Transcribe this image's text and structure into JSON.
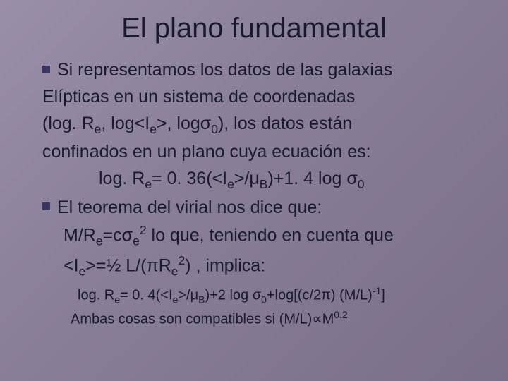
{
  "title": "El plano fundamental",
  "para1_line1_pre": "Si representamos los datos de las galaxias",
  "para1_line2": "Elípticas en un sistema de coordenadas",
  "para1_line3_a": "(log. R",
  "para1_line3_b": ", log<I",
  "para1_line3_c": ">, logσ",
  "para1_line3_d": "), los datos están",
  "para1_line4": "confinados en un plano cuya ecuación es:",
  "eq1_a": "log. R",
  "eq1_b": "= 0. 36(<I",
  "eq1_c": ">/μ",
  "eq1_d": ")+1. 4 log σ",
  "sub_e": "e",
  "sub_B": "B",
  "sub_0": "0",
  "para2_line1": "El teorema del virial nos dice que:",
  "para2_line2_a": "M/R",
  "para2_line2_b": "=cσ",
  "para2_line2_c": " lo que, teniendo en cuenta que",
  "sup_2": "2",
  "para2_line3_a": "<I",
  "para2_line3_b": ">=½ L/(πR",
  "para2_line3_c": ") , implica:",
  "eq2_a": "log. R",
  "eq2_b": "= 0. 4(<I",
  "eq2_c": ">/μ",
  "eq2_d": ")+2 log σ",
  "eq2_e": "+log[(c/2π) (M/L)",
  "eq2_f": "]",
  "sup_m1": "-1",
  "final_a": "Ambas cosas son compatibles si (M/L)∝M",
  "sup_02": "0.2"
}
